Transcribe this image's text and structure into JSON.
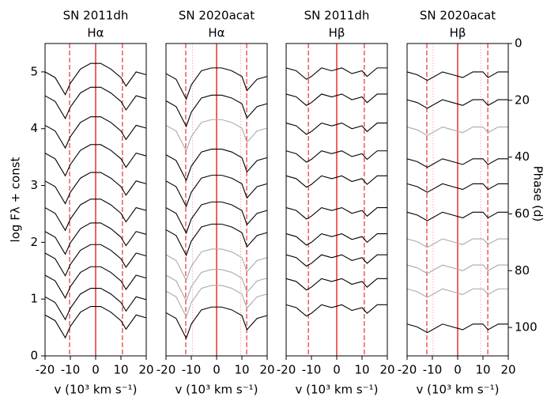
{
  "chart_data": [
    {
      "type": "line",
      "title": [
        "SN 2011dh",
        "Hα"
      ],
      "xlabel": "v (10³ km s⁻¹)",
      "ylabel": "log Fλ + const",
      "xlim": [
        -20,
        20
      ],
      "xticks": [
        -20,
        -10,
        0,
        10,
        20
      ],
      "ylim": [
        0,
        5.5
      ],
      "yticks": [
        0,
        1,
        2,
        3,
        4,
        5
      ],
      "ref_color": "#e8312f",
      "solid_line": 0,
      "dashed_lines": [
        -10.3,
        10.6
      ],
      "dotted_lines": [],
      "x": [
        -20,
        -16,
        -12,
        -10,
        -6,
        -2,
        2,
        6,
        10,
        12,
        16,
        20
      ],
      "series": [
        {
          "color": "#000000",
          "values": [
            5.0,
            4.9,
            4.6,
            4.8,
            5.05,
            5.15,
            5.15,
            5.05,
            4.9,
            4.75,
            5.0,
            4.95
          ]
        },
        {
          "color": "#000000",
          "values": [
            4.58,
            4.48,
            4.18,
            4.38,
            4.63,
            4.73,
            4.73,
            4.63,
            4.48,
            4.33,
            4.58,
            4.53
          ]
        },
        {
          "color": "#000000",
          "values": [
            4.06,
            3.96,
            3.66,
            3.86,
            4.11,
            4.21,
            4.21,
            4.11,
            3.96,
            3.81,
            4.06,
            4.01
          ]
        },
        {
          "color": "#000000",
          "values": [
            3.57,
            3.47,
            3.17,
            3.37,
            3.62,
            3.72,
            3.72,
            3.62,
            3.47,
            3.32,
            3.57,
            3.52
          ]
        },
        {
          "color": "#000000",
          "values": [
            3.08,
            2.98,
            2.68,
            2.88,
            3.13,
            3.23,
            3.23,
            3.13,
            2.98,
            2.83,
            3.08,
            3.03
          ]
        },
        {
          "color": "#000000",
          "values": [
            2.61,
            2.51,
            2.21,
            2.41,
            2.66,
            2.76,
            2.76,
            2.66,
            2.51,
            2.36,
            2.61,
            2.56
          ]
        },
        {
          "color": "#000000",
          "values": [
            2.19,
            2.09,
            1.79,
            1.99,
            2.24,
            2.34,
            2.34,
            2.24,
            2.09,
            1.94,
            2.19,
            2.14
          ]
        },
        {
          "color": "#000000",
          "values": [
            1.81,
            1.71,
            1.41,
            1.61,
            1.86,
            1.96,
            1.96,
            1.86,
            1.71,
            1.56,
            1.81,
            1.76
          ]
        },
        {
          "color": "#000000",
          "values": [
            1.42,
            1.32,
            1.02,
            1.22,
            1.47,
            1.57,
            1.57,
            1.47,
            1.32,
            1.17,
            1.42,
            1.37
          ]
        },
        {
          "color": "#000000",
          "values": [
            1.04,
            0.94,
            0.64,
            0.84,
            1.09,
            1.19,
            1.19,
            1.09,
            0.94,
            0.79,
            1.04,
            0.99
          ]
        },
        {
          "color": "#000000",
          "values": [
            0.72,
            0.62,
            0.32,
            0.52,
            0.77,
            0.87,
            0.87,
            0.77,
            0.62,
            0.47,
            0.72,
            0.67
          ]
        }
      ]
    },
    {
      "type": "line",
      "title": [
        "SN 2020acat",
        "Hα"
      ],
      "xlabel": "v (10³ km s⁻¹)",
      "xlim": [
        -20,
        20
      ],
      "xticks": [
        -20,
        -10,
        0,
        10,
        20
      ],
      "ylim": [
        0,
        5.5
      ],
      "ref_color": "#e8312f",
      "solid_line": 0,
      "dashed_lines": [
        -12.2,
        11.9
      ],
      "dotted_lines": [
        -9.5,
        9.5
      ],
      "x": [
        -20,
        -16,
        -12,
        -10,
        -6,
        -2,
        2,
        6,
        10,
        12,
        16,
        20
      ],
      "series": [
        {
          "color": "#000000",
          "values": [
            4.97,
            4.87,
            4.52,
            4.77,
            5.02,
            5.07,
            5.07,
            5.02,
            4.92,
            4.67,
            4.87,
            4.92
          ]
        },
        {
          "color": "#000000",
          "values": [
            4.49,
            4.39,
            4.04,
            4.29,
            4.54,
            4.59,
            4.59,
            4.54,
            4.44,
            4.19,
            4.39,
            4.44
          ]
        },
        {
          "color": "#aaaaaa",
          "values": [
            4.06,
            3.96,
            3.61,
            3.86,
            4.11,
            4.16,
            4.16,
            4.11,
            4.01,
            3.76,
            3.96,
            4.01
          ]
        },
        {
          "color": "#000000",
          "values": [
            3.54,
            3.44,
            3.09,
            3.34,
            3.59,
            3.64,
            3.64,
            3.59,
            3.49,
            3.24,
            3.44,
            3.49
          ]
        },
        {
          "color": "#000000",
          "values": [
            3.08,
            2.98,
            2.63,
            2.88,
            3.13,
            3.18,
            3.18,
            3.13,
            3.03,
            2.78,
            2.98,
            3.03
          ]
        },
        {
          "color": "#000000",
          "values": [
            2.61,
            2.51,
            2.16,
            2.41,
            2.66,
            2.71,
            2.71,
            2.66,
            2.56,
            2.31,
            2.51,
            2.56
          ]
        },
        {
          "color": "#000000",
          "values": [
            2.22,
            2.12,
            1.77,
            2.02,
            2.27,
            2.32,
            2.32,
            2.27,
            2.17,
            1.92,
            2.12,
            2.17
          ]
        },
        {
          "color": "#aaaaaa",
          "values": [
            1.78,
            1.68,
            1.33,
            1.58,
            1.83,
            1.88,
            1.88,
            1.83,
            1.73,
            1.48,
            1.68,
            1.73
          ]
        },
        {
          "color": "#aaaaaa",
          "values": [
            1.42,
            1.32,
            0.97,
            1.22,
            1.47,
            1.52,
            1.52,
            1.47,
            1.37,
            1.12,
            1.32,
            1.37
          ]
        },
        {
          "color": "#aaaaaa",
          "values": [
            1.14,
            1.04,
            0.69,
            0.94,
            1.19,
            1.24,
            1.24,
            1.19,
            1.09,
            0.84,
            1.04,
            1.09
          ]
        },
        {
          "color": "#000000",
          "values": [
            0.76,
            0.66,
            0.31,
            0.56,
            0.81,
            0.86,
            0.86,
            0.81,
            0.71,
            0.46,
            0.66,
            0.71
          ]
        }
      ]
    },
    {
      "type": "line",
      "title": [
        "SN 2011dh",
        "Hβ"
      ],
      "xlabel": "v (10³ km s⁻¹)",
      "xlim": [
        -20,
        20
      ],
      "xticks": [
        -20,
        -10,
        0,
        10,
        20
      ],
      "ylim": [
        0,
        5.5
      ],
      "ref_color": "#e8312f",
      "solid_line": 0,
      "dashed_lines": [
        -11.2,
        10.9
      ],
      "dotted_lines": [],
      "x": [
        -20,
        -16,
        -12,
        -10,
        -6,
        -2,
        2,
        6,
        10,
        12,
        16,
        20
      ],
      "series": [
        {
          "color": "#000000",
          "values": [
            5.07,
            5.02,
            4.87,
            4.92,
            5.07,
            5.02,
            5.07,
            4.97,
            5.02,
            4.92,
            5.07,
            5.07
          ]
        },
        {
          "color": "#000000",
          "values": [
            4.61,
            4.56,
            4.41,
            4.46,
            4.61,
            4.56,
            4.61,
            4.51,
            4.56,
            4.46,
            4.61,
            4.61
          ]
        },
        {
          "color": "#000000",
          "values": [
            4.1,
            4.05,
            3.9,
            3.95,
            4.1,
            4.05,
            4.1,
            4.0,
            4.05,
            3.95,
            4.1,
            4.1
          ]
        },
        {
          "color": "#000000",
          "values": [
            3.61,
            3.56,
            3.41,
            3.46,
            3.61,
            3.56,
            3.61,
            3.51,
            3.56,
            3.46,
            3.61,
            3.61
          ]
        },
        {
          "color": "#000000",
          "values": [
            3.17,
            3.12,
            2.97,
            3.02,
            3.17,
            3.12,
            3.17,
            3.07,
            3.12,
            3.02,
            3.17,
            3.17
          ]
        },
        {
          "color": "#000000",
          "values": [
            2.61,
            2.56,
            2.41,
            2.46,
            2.61,
            2.56,
            2.61,
            2.51,
            2.56,
            2.46,
            2.61,
            2.61
          ]
        },
        {
          "color": "#000000",
          "values": [
            2.15,
            2.1,
            1.95,
            2.0,
            2.15,
            2.1,
            2.15,
            2.05,
            2.1,
            2.0,
            2.15,
            2.15
          ]
        },
        {
          "color": "#000000",
          "values": [
            1.78,
            1.73,
            1.58,
            1.63,
            1.78,
            1.73,
            1.78,
            1.68,
            1.73,
            1.63,
            1.78,
            1.78
          ]
        },
        {
          "color": "#000000",
          "values": [
            1.36,
            1.31,
            1.16,
            1.21,
            1.36,
            1.31,
            1.36,
            1.26,
            1.31,
            1.21,
            1.36,
            1.36
          ]
        },
        {
          "color": "#000000",
          "values": [
            0.9,
            0.85,
            0.7,
            0.75,
            0.9,
            0.85,
            0.9,
            0.8,
            0.85,
            0.75,
            0.9,
            0.9
          ]
        }
      ]
    },
    {
      "type": "line",
      "title": [
        "SN 2020acat",
        "Hβ"
      ],
      "xlabel": "v (10³ km s⁻¹)",
      "y2label": "Phase (d)",
      "xlim": [
        -20,
        20
      ],
      "xticks": [
        -20,
        -10,
        0,
        10,
        20
      ],
      "ylim": [
        0,
        5.5
      ],
      "y2lim": [
        110,
        0
      ],
      "y2ticks": [
        0,
        20,
        40,
        60,
        80,
        100
      ],
      "ref_color": "#e8312f",
      "solid_line": 0,
      "dashed_lines": [
        -12.2,
        11.9
      ],
      "dotted_lines": [
        -9.7,
        9.1
      ],
      "x": [
        -20,
        -16,
        -12,
        -10,
        -6,
        -2,
        2,
        6,
        10,
        12,
        16,
        20
      ],
      "series": [
        {
          "color": "#000000",
          "values": [
            5.0,
            4.95,
            4.85,
            4.9,
            5.0,
            4.95,
            4.9,
            5.0,
            5.0,
            4.9,
            5.0,
            5.0
          ]
        },
        {
          "color": "#000000",
          "values": [
            4.51,
            4.46,
            4.36,
            4.41,
            4.51,
            4.46,
            4.41,
            4.51,
            4.51,
            4.41,
            4.51,
            4.51
          ]
        },
        {
          "color": "#aaaaaa",
          "values": [
            4.03,
            3.98,
            3.88,
            3.93,
            4.03,
            3.98,
            3.93,
            4.03,
            4.03,
            3.93,
            4.03,
            4.03
          ]
        },
        {
          "color": "#000000",
          "values": [
            3.47,
            3.42,
            3.32,
            3.37,
            3.47,
            3.42,
            3.37,
            3.47,
            3.47,
            3.37,
            3.47,
            3.47
          ]
        },
        {
          "color": "#000000",
          "values": [
            3.03,
            2.98,
            2.88,
            2.93,
            3.03,
            2.98,
            2.93,
            3.03,
            3.03,
            2.93,
            3.03,
            3.03
          ]
        },
        {
          "color": "#000000",
          "values": [
            2.53,
            2.48,
            2.38,
            2.43,
            2.53,
            2.48,
            2.43,
            2.53,
            2.53,
            2.43,
            2.53,
            2.53
          ]
        },
        {
          "color": "#aaaaaa",
          "values": [
            2.06,
            2.01,
            1.91,
            1.96,
            2.06,
            2.01,
            1.96,
            2.06,
            2.06,
            1.96,
            2.06,
            2.06
          ]
        },
        {
          "color": "#aaaaaa",
          "values": [
            1.6,
            1.55,
            1.45,
            1.5,
            1.6,
            1.55,
            1.5,
            1.6,
            1.6,
            1.5,
            1.6,
            1.6
          ]
        },
        {
          "color": "#aaaaaa",
          "values": [
            1.18,
            1.13,
            1.03,
            1.08,
            1.18,
            1.13,
            1.08,
            1.18,
            1.18,
            1.08,
            1.18,
            1.18
          ]
        },
        {
          "color": "#000000",
          "values": [
            0.56,
            0.51,
            0.41,
            0.46,
            0.56,
            0.51,
            0.46,
            0.56,
            0.56,
            0.46,
            0.56,
            0.56
          ]
        }
      ]
    }
  ]
}
